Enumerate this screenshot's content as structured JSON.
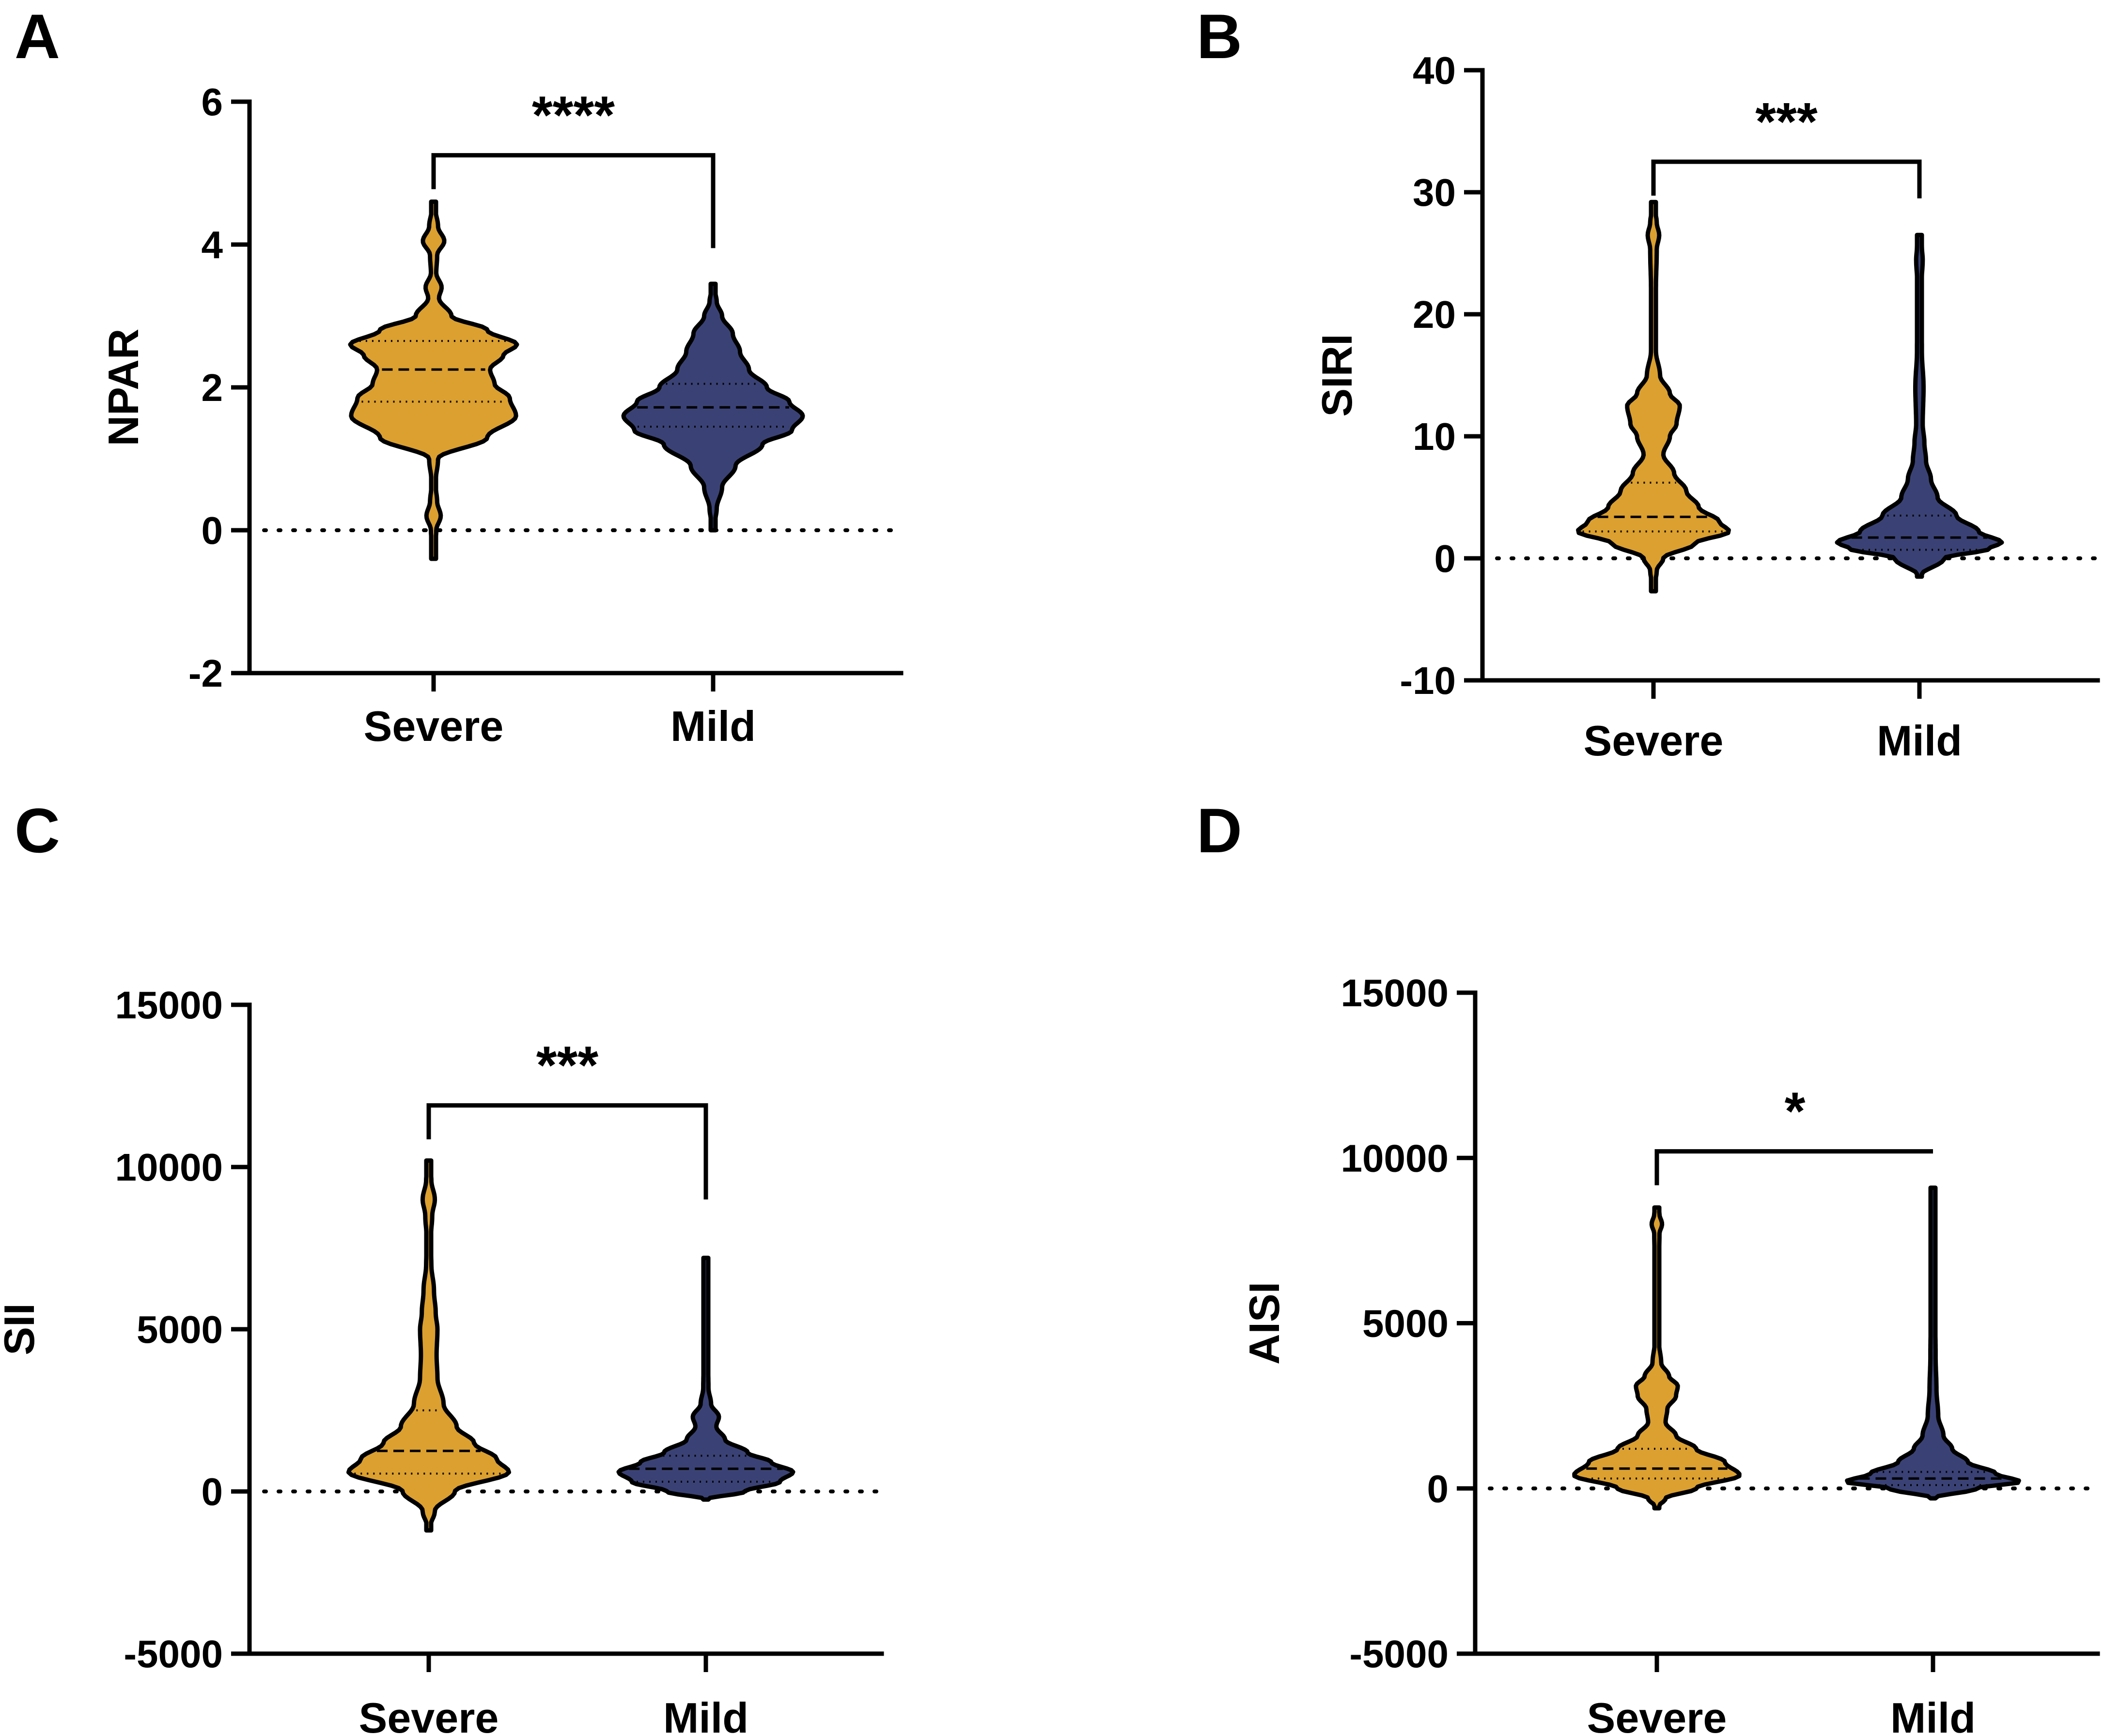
{
  "figure": {
    "colors": {
      "severe": "#DBA030",
      "mild": "#3A4275",
      "outline": "#000000"
    }
  },
  "chart_data": [
    {
      "panel": "A",
      "type": "violin",
      "ylabel": "NPAR",
      "categories": [
        "Severe",
        "Mild"
      ],
      "ylim": [
        -2,
        6
      ],
      "yticks": [
        -2,
        0,
        2,
        4,
        6
      ],
      "ytick_labels": [
        "-2",
        "0",
        "2",
        "4",
        "6"
      ],
      "reference_line": 0,
      "significance": "****",
      "bracket_y": [
        5.25,
        5.55,
        3.95
      ],
      "series": [
        {
          "name": "Severe",
          "min": -0.4,
          "max": 4.6,
          "q1": 1.8,
          "median": 2.25,
          "q3": 2.65,
          "profile": [
            [
              -0.4,
              0
            ],
            [
              0,
              0.03
            ],
            [
              0.2,
              0.08
            ],
            [
              0.4,
              0.04
            ],
            [
              0.65,
              0.02
            ],
            [
              1.0,
              0.05
            ],
            [
              1.3,
              0.6
            ],
            [
              1.6,
              0.92
            ],
            [
              1.85,
              0.85
            ],
            [
              2.05,
              0.68
            ],
            [
              2.25,
              0.63
            ],
            [
              2.45,
              0.78
            ],
            [
              2.6,
              0.93
            ],
            [
              2.8,
              0.6
            ],
            [
              3.0,
              0.2
            ],
            [
              3.25,
              0.06
            ],
            [
              3.4,
              0.09
            ],
            [
              3.6,
              0.03
            ],
            [
              3.85,
              0.04
            ],
            [
              4.05,
              0.12
            ],
            [
              4.25,
              0.05
            ],
            [
              4.6,
              0
            ]
          ]
        },
        {
          "name": "Mild",
          "min": 0.0,
          "max": 3.45,
          "q1": 1.45,
          "median": 1.72,
          "q3": 2.05,
          "profile": [
            [
              0.0,
              0
            ],
            [
              0.3,
              0.04
            ],
            [
              0.6,
              0.1
            ],
            [
              0.9,
              0.25
            ],
            [
              1.2,
              0.55
            ],
            [
              1.4,
              0.88
            ],
            [
              1.6,
              1.0
            ],
            [
              1.8,
              0.85
            ],
            [
              2.0,
              0.6
            ],
            [
              2.25,
              0.4
            ],
            [
              2.5,
              0.3
            ],
            [
              2.75,
              0.22
            ],
            [
              3.0,
              0.1
            ],
            [
              3.2,
              0.04
            ],
            [
              3.45,
              0
            ]
          ]
        }
      ]
    },
    {
      "panel": "B",
      "type": "violin",
      "ylabel": "SIRI",
      "categories": [
        "Severe",
        "Mild"
      ],
      "ylim": [
        -10,
        40
      ],
      "yticks": [
        -10,
        0,
        10,
        20,
        30,
        40
      ],
      "ytick_labels": [
        "-10",
        "0",
        "10",
        "20",
        "30",
        "40"
      ],
      "reference_line": 0,
      "significance": "***",
      "bracket_y": [
        32.5,
        35.5,
        29.5
      ],
      "series": [
        {
          "name": "Severe",
          "min": -2.7,
          "max": 29.2,
          "q1": 2.2,
          "median": 3.4,
          "q3": 6.2,
          "profile": [
            [
              -2.7,
              0
            ],
            [
              -1,
              0.04
            ],
            [
              0,
              0.12
            ],
            [
              1.2,
              0.5
            ],
            [
              2.2,
              0.92
            ],
            [
              3.0,
              0.8
            ],
            [
              4.2,
              0.55
            ],
            [
              5.5,
              0.4
            ],
            [
              7,
              0.25
            ],
            [
              8.5,
              0.12
            ],
            [
              10,
              0.2
            ],
            [
              11,
              0.28
            ],
            [
              12.5,
              0.32
            ],
            [
              13.5,
              0.2
            ],
            [
              15,
              0.08
            ],
            [
              17,
              0.03
            ],
            [
              22,
              0.03
            ],
            [
              25.3,
              0.04
            ],
            [
              26.5,
              0.07
            ],
            [
              27.5,
              0.04
            ],
            [
              29.2,
              0
            ]
          ]
        },
        {
          "name": "Mild",
          "min": -1.5,
          "max": 26.5,
          "q1": 0.7,
          "median": 1.7,
          "q3": 3.5,
          "profile": [
            [
              -1.5,
              0
            ],
            [
              0,
              0.3
            ],
            [
              0.8,
              0.85
            ],
            [
              1.3,
              1.0
            ],
            [
              2.2,
              0.72
            ],
            [
              3.5,
              0.45
            ],
            [
              5,
              0.22
            ],
            [
              6.5,
              0.14
            ],
            [
              8,
              0.08
            ],
            [
              9.5,
              0.06
            ],
            [
              11,
              0.04
            ],
            [
              14,
              0.05
            ],
            [
              17,
              0.03
            ],
            [
              22,
              0.02
            ],
            [
              24.5,
              0.04
            ],
            [
              25.5,
              0.03
            ],
            [
              26.5,
              0
            ]
          ]
        }
      ]
    },
    {
      "panel": "C",
      "type": "violin",
      "ylabel": "SII",
      "categories": [
        "Severe",
        "Mild"
      ],
      "ylim": [
        -5000,
        15000
      ],
      "yticks": [
        -5000,
        0,
        5000,
        10000,
        15000
      ],
      "ytick_labels": [
        "-5000",
        "0",
        "5000",
        "10000",
        "15000"
      ],
      "reference_line": 0,
      "significance": "***",
      "bracket_y": [
        11900,
        12600,
        9000
      ],
      "series": [
        {
          "name": "Severe",
          "min": -1200,
          "max": 10200,
          "q1": 550,
          "median": 1250,
          "q3": 2500,
          "profile": [
            [
              -1200,
              0
            ],
            [
              -600,
              0.07
            ],
            [
              0,
              0.3
            ],
            [
              600,
              0.92
            ],
            [
              1000,
              0.78
            ],
            [
              1500,
              0.52
            ],
            [
              2000,
              0.32
            ],
            [
              2700,
              0.17
            ],
            [
              3500,
              0.1
            ],
            [
              4200,
              0.09
            ],
            [
              5000,
              0.1
            ],
            [
              5500,
              0.08
            ],
            [
              6200,
              0.06
            ],
            [
              7000,
              0.03
            ],
            [
              7700,
              0.02
            ],
            [
              8500,
              0.04
            ],
            [
              9000,
              0.07
            ],
            [
              9600,
              0.03
            ],
            [
              10200,
              0
            ]
          ]
        },
        {
          "name": "Mild",
          "min": -250,
          "max": 7200,
          "q1": 300,
          "median": 700,
          "q3": 1100,
          "profile": [
            [
              -250,
              0
            ],
            [
              0,
              0.45
            ],
            [
              300,
              0.85
            ],
            [
              600,
              1.0
            ],
            [
              900,
              0.75
            ],
            [
              1200,
              0.48
            ],
            [
              1600,
              0.22
            ],
            [
              2000,
              0.12
            ],
            [
              2300,
              0.15
            ],
            [
              2700,
              0.06
            ],
            [
              3200,
              0.03
            ],
            [
              4000,
              0.025
            ],
            [
              5000,
              0.025
            ],
            [
              6000,
              0.02
            ],
            [
              6900,
              0.025
            ],
            [
              7200,
              0
            ]
          ]
        }
      ]
    },
    {
      "panel": "D",
      "type": "violin",
      "ylabel": "AISI",
      "categories": [
        "Severe",
        "Mild"
      ],
      "ylim": [
        -5000,
        15000
      ],
      "yticks": [
        -5000,
        0,
        5000,
        10000,
        15000
      ],
      "ytick_labels": [
        "-5000",
        "0",
        "5000",
        "10000",
        "15000"
      ],
      "reference_line": 0,
      "significance": "*",
      "bracket_y": [
        10200,
        11700,
        10200
      ],
      "series": [
        {
          "name": "Severe",
          "min": -600,
          "max": 8500,
          "q1": 300,
          "median": 600,
          "q3": 1200,
          "profile": [
            [
              -600,
              0
            ],
            [
              -300,
              0.1
            ],
            [
              0,
              0.45
            ],
            [
              400,
              0.95
            ],
            [
              800,
              0.78
            ],
            [
              1200,
              0.45
            ],
            [
              1600,
              0.22
            ],
            [
              2000,
              0.1
            ],
            [
              2400,
              0.12
            ],
            [
              2800,
              0.22
            ],
            [
              3100,
              0.24
            ],
            [
              3400,
              0.14
            ],
            [
              3800,
              0.05
            ],
            [
              4500,
              0.02
            ],
            [
              6500,
              0.02
            ],
            [
              7700,
              0.03
            ],
            [
              8000,
              0.06
            ],
            [
              8300,
              0.03
            ],
            [
              8500,
              0
            ]
          ]
        },
        {
          "name": "Mild",
          "min": -300,
          "max": 9100,
          "q1": 100,
          "median": 300,
          "q3": 500,
          "profile": [
            [
              -300,
              0
            ],
            [
              0,
              0.5
            ],
            [
              200,
              1.0
            ],
            [
              450,
              0.72
            ],
            [
              800,
              0.4
            ],
            [
              1200,
              0.22
            ],
            [
              1600,
              0.12
            ],
            [
              2200,
              0.06
            ],
            [
              3000,
              0.04
            ],
            [
              4000,
              0.03
            ],
            [
              6000,
              0.02
            ],
            [
              8000,
              0.02
            ],
            [
              9100,
              0
            ]
          ]
        }
      ]
    }
  ]
}
